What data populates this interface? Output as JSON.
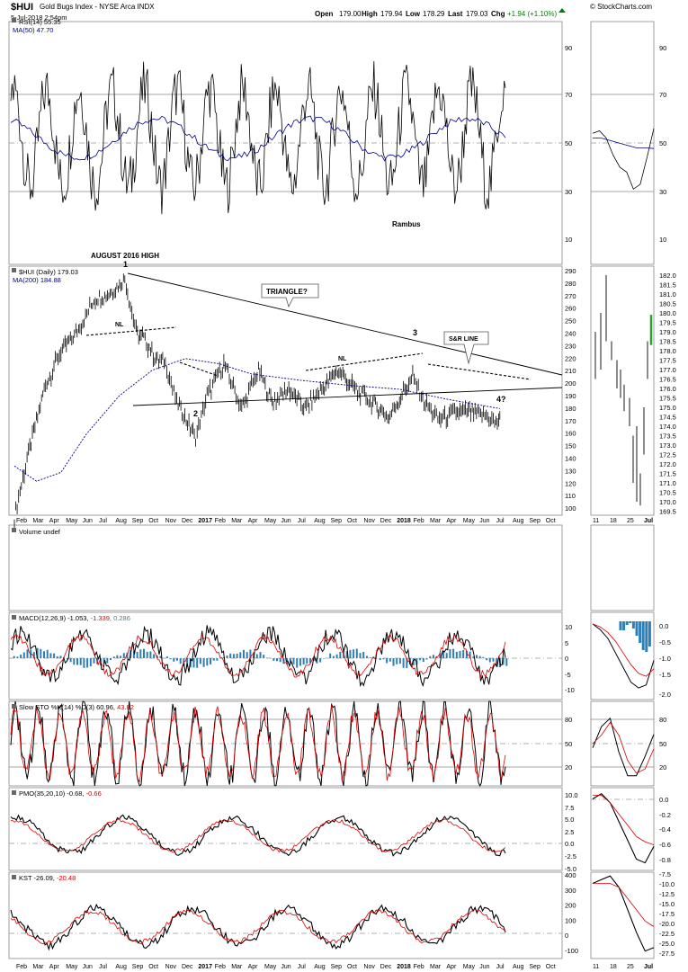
{
  "header": {
    "symbol": "$HUI",
    "name": "Gold Bugs Index - NYSE Arca  INDX",
    "datetime": "5-Jul-2018 2:54pm",
    "open_label": "Open",
    "open": "179.00",
    "high_label": "High",
    "high": "179.94",
    "low_label": "Low",
    "low": "178.29",
    "last_label": "Last",
    "last": "179.03",
    "chg_label": "Chg",
    "chg": "+1.94 (+1.10%)",
    "credit": "© StockCharts.com"
  },
  "panels": {
    "rsi": {
      "label": "RSI(14) 55.35",
      "ma_label": "MA(50) 47.70",
      "ticks": [
        "90",
        "70",
        "50",
        "30",
        "10"
      ],
      "ticks_right": [
        "90",
        "70",
        "50",
        "30",
        "10"
      ],
      "annotation": "Rambus"
    },
    "price": {
      "label": "$HUI (Daily) 179.03",
      "ma_label": "MA(200) 184.88",
      "ticks": [
        "290",
        "280",
        "270",
        "260",
        "250",
        "240",
        "230",
        "220",
        "210",
        "200",
        "190",
        "180",
        "170",
        "160",
        "150",
        "140",
        "130",
        "120",
        "110",
        "100"
      ],
      "ticks_right": [
        "182.0",
        "181.5",
        "181.0",
        "180.5",
        "180.0",
        "179.5",
        "179.0",
        "178.5",
        "178.0",
        "177.5",
        "177.0",
        "176.5",
        "176.0",
        "175.5",
        "175.0",
        "174.5",
        "174.0",
        "173.5",
        "173.0",
        "172.5",
        "172.0",
        "171.5",
        "171.0",
        "170.5",
        "170.0",
        "169.5"
      ],
      "annotations": {
        "aug_high": "AUGUST 2016 HIGH",
        "p1": "1",
        "p2": "2",
        "p3": "3",
        "p4": "4?",
        "nl1": "NL",
        "nl2": "NL",
        "triangle": "TRIANGLE?",
        "sr_line": "S&R LINE"
      }
    },
    "volume": {
      "label": "Volume undef"
    },
    "macd": {
      "label_a": "MACD(12,26,9) -1.053,",
      "label_b": "-1.339,",
      "label_c": "0.286",
      "ticks": [
        "10",
        "5",
        "0",
        "-5",
        "-10"
      ],
      "ticks_right": [
        "0.0",
        "-0.5",
        "-1.0",
        "-1.5",
        "-2.0"
      ]
    },
    "sto": {
      "label_a": "Slow STO %K(14) %D(3) 60.96,",
      "label_b": "43.82",
      "ticks": [
        "80",
        "50",
        "20"
      ],
      "ticks_right": [
        "80",
        "50",
        "20"
      ]
    },
    "pmo": {
      "label_a": "PMO(35,20,10) -0.68,",
      "label_b": "-0.66",
      "ticks": [
        "10.0",
        "7.5",
        "5.0",
        "2.5",
        "0.0",
        "-2.5",
        "-5.0"
      ],
      "ticks_right": [
        "0.0",
        "-0.2",
        "-0.4",
        "-0.6",
        "-0.8"
      ]
    },
    "kst": {
      "label_a": "KST -26.09,",
      "label_b": "-20.48",
      "ticks": [
        "400",
        "300",
        "200",
        "100",
        "0",
        "-100"
      ],
      "ticks_right": [
        "-7.5",
        "-10.0",
        "-12.5",
        "-15.0",
        "-17.5",
        "-20.0",
        "-22.5",
        "-25.0",
        "-27.5"
      ]
    }
  },
  "x_axis": {
    "months": [
      "Feb",
      "Mar",
      "Apr",
      "May",
      "Jun",
      "Jul",
      "Aug",
      "Sep",
      "Oct",
      "Nov",
      "Dec",
      "2017",
      "Feb",
      "Mar",
      "Apr",
      "May",
      "Jun",
      "Jul",
      "Aug",
      "Sep",
      "Oct",
      "Nov",
      "Dec",
      "2018",
      "Feb",
      "Mar",
      "Apr",
      "May",
      "Jun",
      "Jul",
      "Aug",
      "Sep",
      "Oct"
    ],
    "right_days": [
      "11",
      "18",
      "25",
      "Jul"
    ]
  },
  "chart_data": {
    "type": "line",
    "title": "$HUI Gold Bugs Index - NYSE Arca INDX",
    "series": [
      {
        "name": "$HUI (Daily)",
        "x": [
          "2016-01-20",
          "2016-02-15",
          "2016-03-15",
          "2016-04-15",
          "2016-05-15",
          "2016-06-15",
          "2016-07-15",
          "2016-08-11",
          "2016-09-01",
          "2016-09-15",
          "2016-10-05",
          "2016-10-25",
          "2016-11-15",
          "2016-12-20",
          "2017-01-10",
          "2017-02-10",
          "2017-03-15",
          "2017-04-15",
          "2017-05-10",
          "2017-06-10",
          "2017-07-10",
          "2017-08-10",
          "2017-09-08",
          "2017-10-10",
          "2017-11-10",
          "2017-12-12",
          "2018-01-25",
          "2018-02-15",
          "2018-03-15",
          "2018-04-15",
          "2018-05-15",
          "2018-06-15",
          "2018-06-28",
          "2018-07-05"
        ],
        "values": [
          100,
          150,
          200,
          230,
          245,
          270,
          275,
          286,
          245,
          240,
          225,
          220,
          190,
          162,
          195,
          220,
          185,
          215,
          190,
          200,
          185,
          200,
          215,
          200,
          190,
          178,
          210,
          190,
          176,
          182,
          182,
          178,
          173,
          179
        ]
      },
      {
        "name": "MA(200)",
        "x": [
          "2016-01-20",
          "2016-03-01",
          "2016-04-15",
          "2016-06-01",
          "2016-08-01",
          "2016-10-01",
          "2016-12-01",
          "2017-02-01",
          "2017-04-01",
          "2017-07-01",
          "2017-10-01",
          "2018-01-01",
          "2018-04-01",
          "2018-07-05"
        ],
        "values": [
          140,
          128,
          135,
          165,
          195,
          215,
          224,
          220,
          212,
          207,
          203,
          200,
          192,
          184.88
        ]
      }
    ],
    "ylim": [
      100,
      290
    ],
    "ylabel": "",
    "rsi_14": 55.35,
    "rsi_ma50": 47.7,
    "macd": [
      -1.053,
      -1.339,
      0.286
    ],
    "slow_sto": [
      60.96,
      43.82
    ],
    "pmo": [
      -0.68,
      -0.66
    ],
    "kst": [
      -26.09,
      -20.48
    ],
    "trendline_points": [
      {
        "label": "1",
        "date": "2016-08-11",
        "value": 286
      },
      {
        "label": "2",
        "date": "2016-12-20",
        "value": 162
      },
      {
        "label": "3",
        "date": "2018-01-25",
        "value": 210
      },
      {
        "label": "4?",
        "date": "2018-06-28",
        "value": 173
      }
    ]
  },
  "colors": {
    "price": "#000000",
    "ma": "#00008b",
    "signal": "#dd0000",
    "hist": "#2f7fb5",
    "accent_green": "#2ca02c"
  }
}
